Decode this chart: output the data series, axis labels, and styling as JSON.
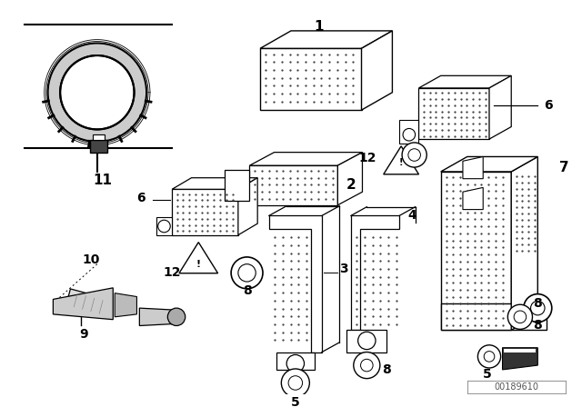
{
  "bg_color": "#ffffff",
  "line_color": "#000000",
  "fig_width": 6.4,
  "fig_height": 4.48,
  "dpi": 100,
  "part_number": "00189610"
}
